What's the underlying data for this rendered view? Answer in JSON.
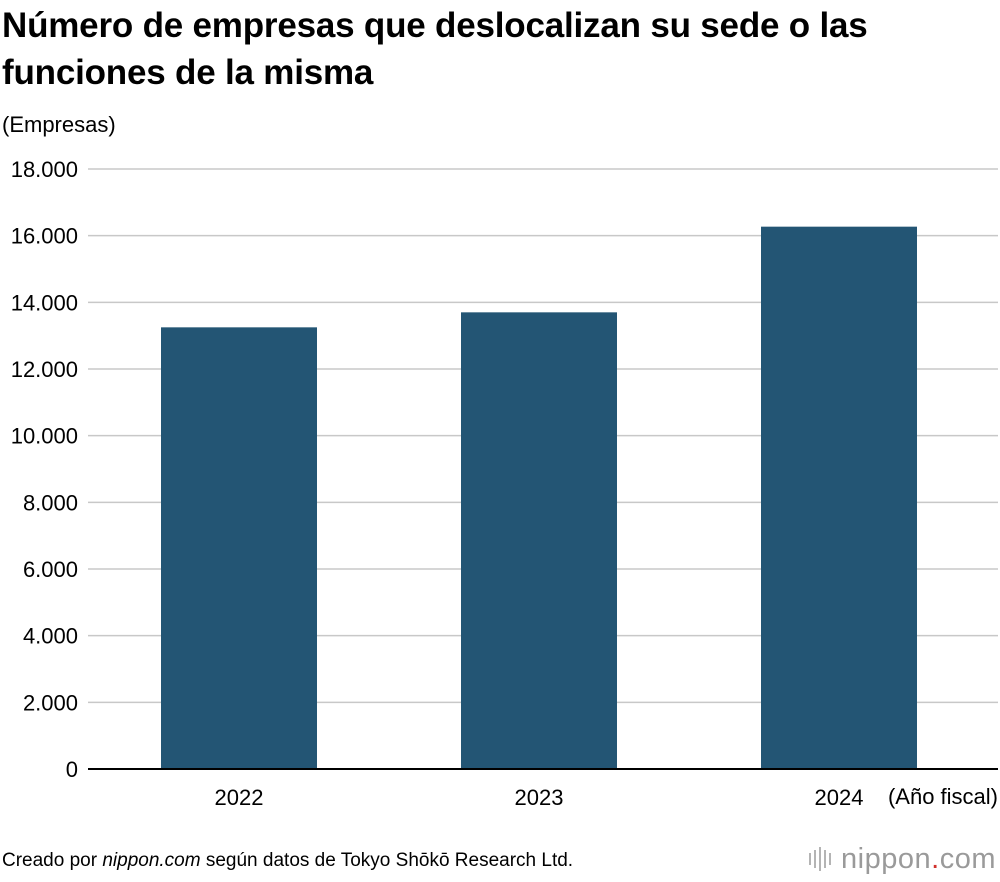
{
  "chart_data": {
    "type": "bar",
    "title": "Número de empresas que deslocalizan su sede o las funciones de la misma",
    "ylabel": "(Empresas)",
    "xlabel": "(Año fiscal)",
    "categories": [
      "2022",
      "2023",
      "2024"
    ],
    "values": [
      13250,
      13700,
      16270
    ],
    "ylim": [
      0,
      18000
    ],
    "yticks": [
      0,
      2000,
      4000,
      6000,
      8000,
      10000,
      12000,
      14000,
      16000,
      18000
    ],
    "ytick_labels": [
      "0",
      "2.000",
      "4.000",
      "6.000",
      "8.000",
      "10.000",
      "12.000",
      "14.000",
      "16.000",
      "18.000"
    ],
    "grid": true,
    "bar_color": "#235574"
  },
  "footer": {
    "source_prefix": "Creado por ",
    "source_site": "nippon.com",
    "source_suffix": " según datos de Tokyo Shōkō Research Ltd."
  },
  "logo": {
    "name": "nippon",
    "dot": ".",
    "suffix": "com"
  }
}
